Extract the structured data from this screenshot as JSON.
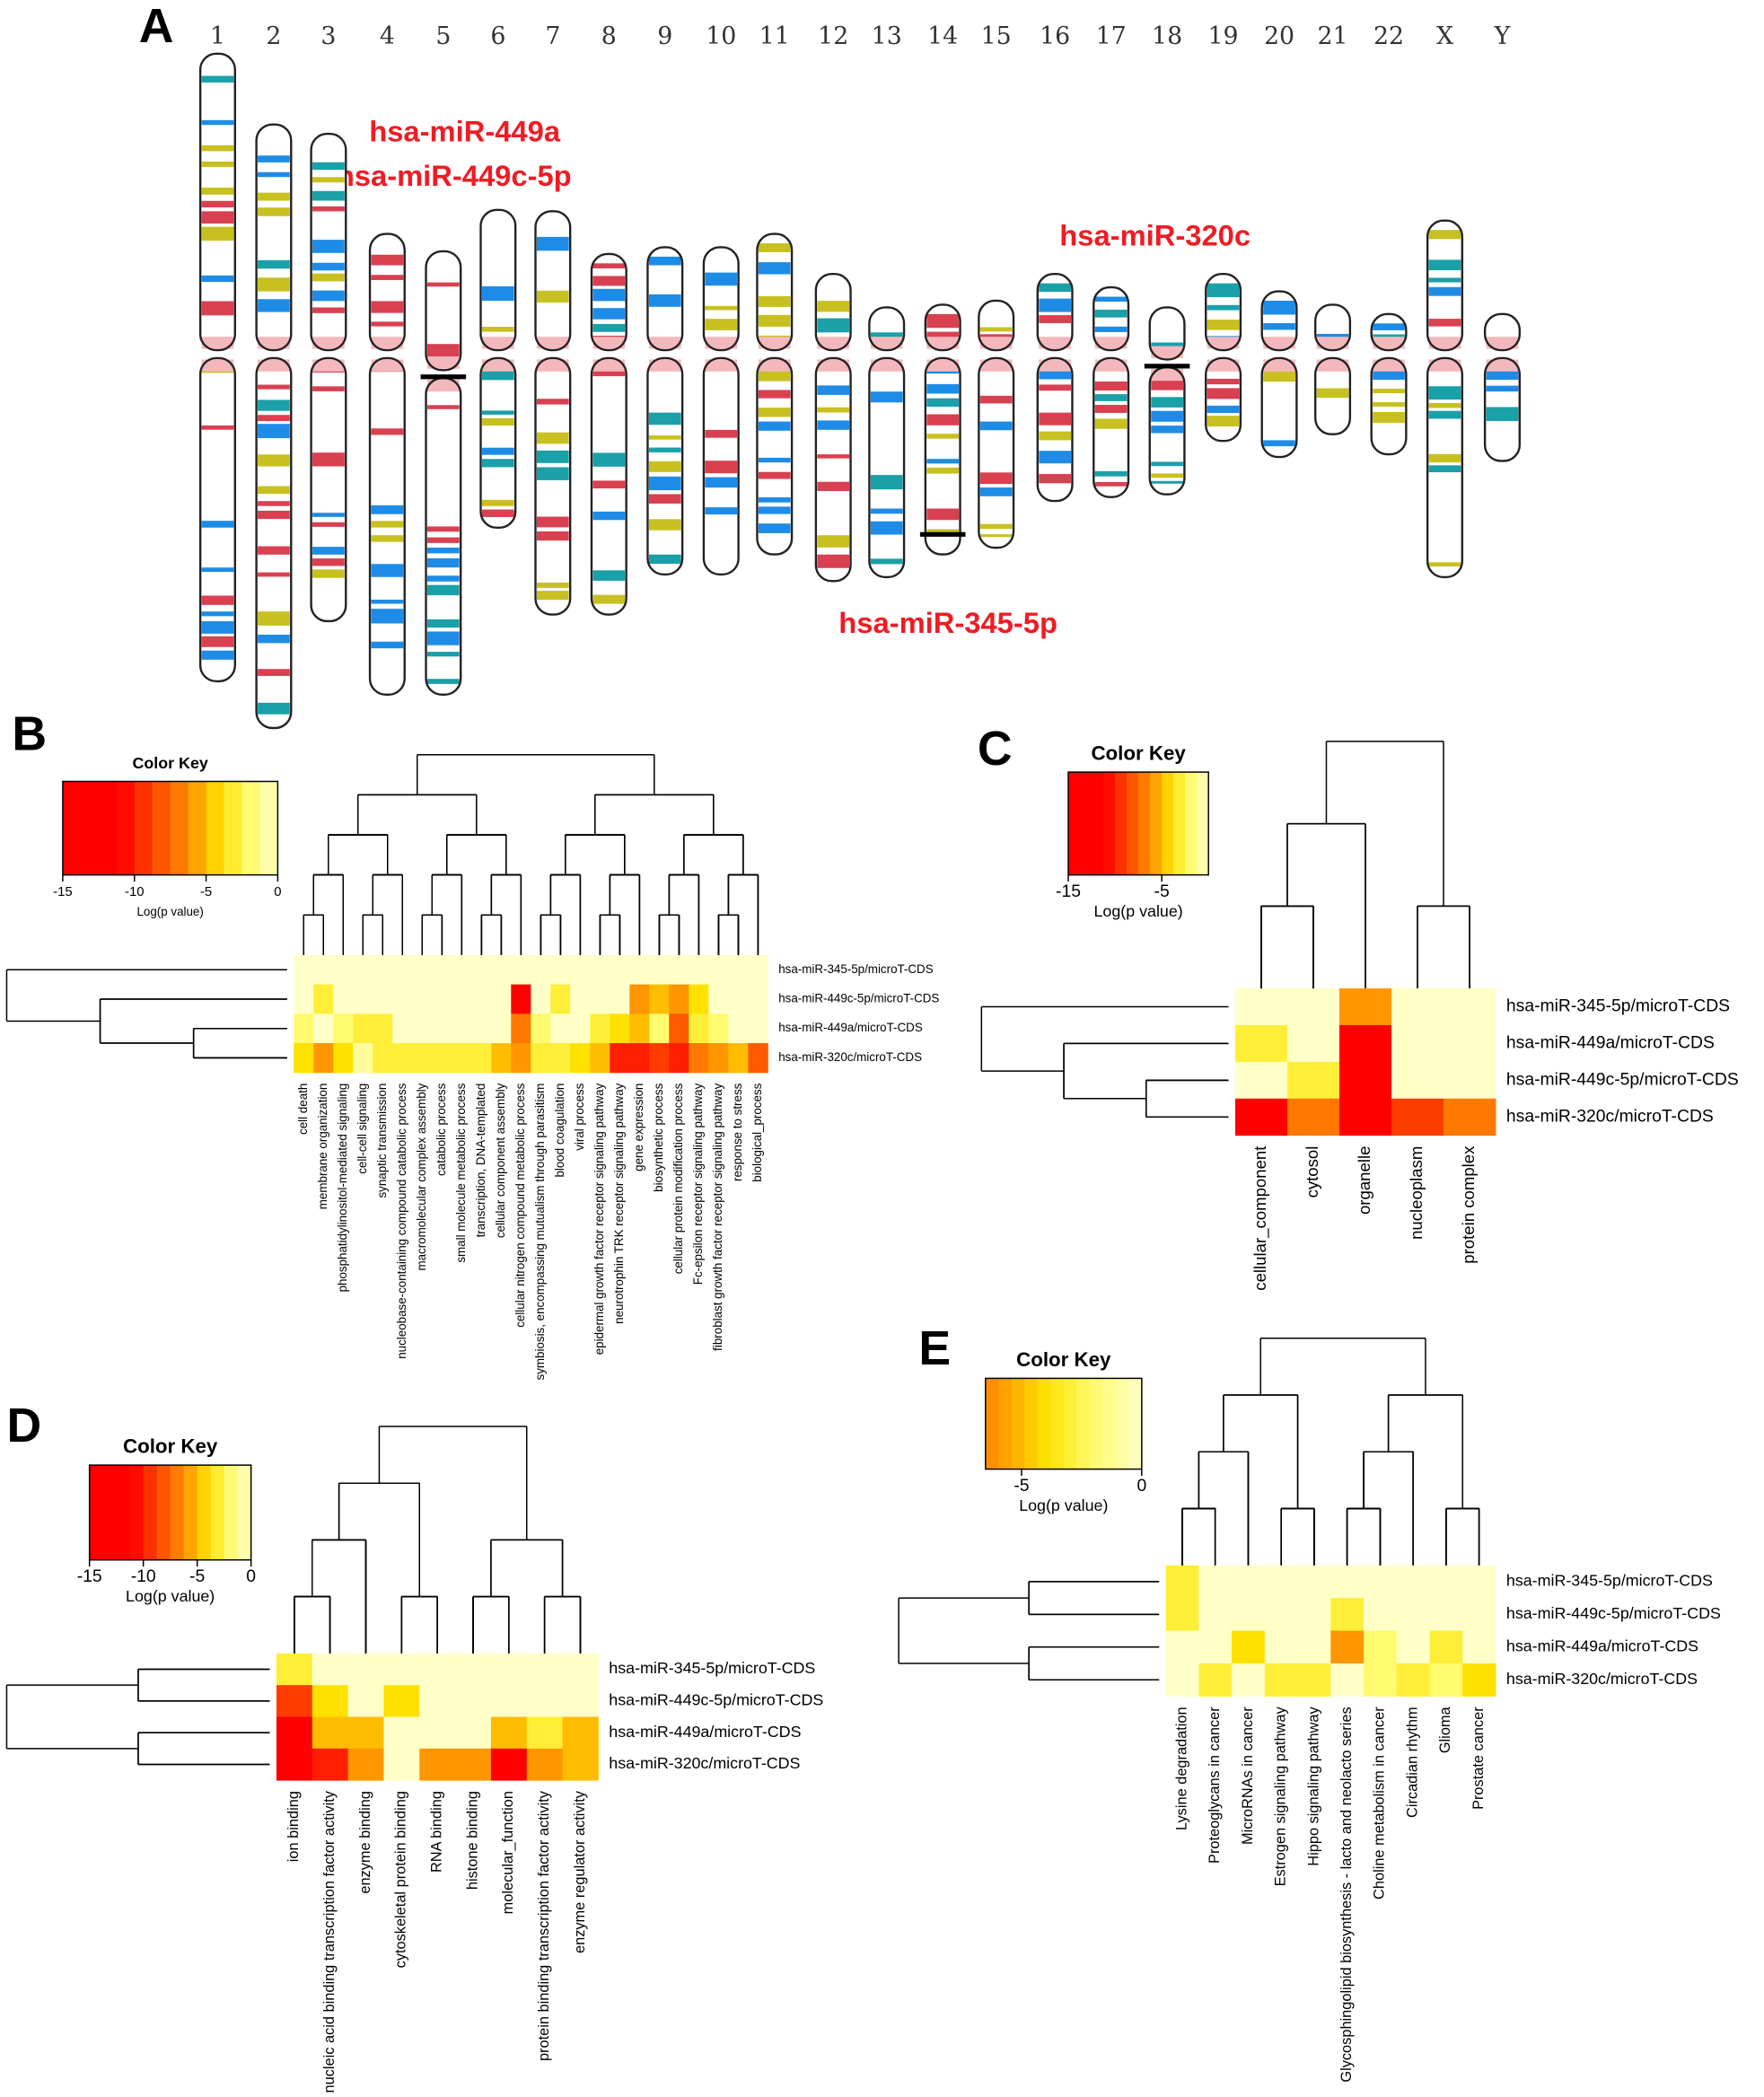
{
  "panels": {
    "A": {
      "label": "A",
      "chromosomes": [
        "1",
        "2",
        "3",
        "4",
        "5",
        "6",
        "7",
        "8",
        "9",
        "10",
        "11",
        "12",
        "13",
        "14",
        "15",
        "16",
        "17",
        "18",
        "19",
        "20",
        "21",
        "22",
        "X",
        "Y"
      ],
      "annotations": [
        "hsa-miR-449a",
        "hsa-miR-449c-5p",
        "hsa-miR-320c",
        "hsa-miR-345-5p"
      ]
    },
    "B": {
      "label": "B",
      "color_key": {
        "title": "Color Key",
        "xlabel": "Log(p value)",
        "lim": [
          -15,
          0
        ],
        "ticks": [
          -15,
          -10,
          -5,
          0
        ]
      },
      "rows": [
        "hsa-miR-345-5p/microT-CDS",
        "hsa-miR-449c-5p/microT-CDS",
        "hsa-miR-449a/microT-CDS",
        "hsa-miR-320c/microT-CDS"
      ],
      "columns": [
        "cell death",
        "membrane organization",
        "phosphatidylinositol-mediated signaling",
        "cell-cell signaling",
        "synaptic transmission",
        "nucleobase-containing compound catabolic process",
        "macromolecular complex assembly",
        "catabolic process",
        "small molecule metabolic process",
        "transcription, DNA-templated",
        "cellular component assembly",
        "cellular nitrogen compound metabolic process",
        "symbiosis, encompassing mutualism through parasitism",
        "blood coagulation",
        "viral process",
        "epidermal growth factor receptor signaling pathway",
        "neurotrophin TRK receptor signaling pathway",
        "gene expression",
        "biosynthetic process",
        "cellular protein modification process",
        "Fc-epsilon receptor signaling pathway",
        "fibroblast growth factor receptor signaling pathway",
        "response to stress",
        "biological_process"
      ],
      "values": [
        [
          0,
          0,
          0,
          0,
          0,
          0,
          0,
          0,
          0,
          0,
          0,
          0,
          0,
          0,
          0,
          0,
          0,
          0,
          0,
          0,
          0,
          0,
          0,
          0
        ],
        [
          0,
          -3,
          0,
          0,
          0,
          0,
          0,
          0,
          0,
          0,
          0,
          -12,
          0,
          -3,
          0,
          0,
          0,
          -6,
          -5,
          -6,
          -4,
          0,
          0,
          0
        ],
        [
          -2,
          0,
          -2,
          -3,
          -3,
          0,
          0,
          0,
          0,
          0,
          0,
          -7,
          -2,
          0,
          0,
          -3,
          -4,
          -5,
          -2,
          -8,
          -3,
          -2,
          0,
          0
        ],
        [
          -4,
          -6,
          -4,
          -1,
          -3,
          -3,
          -3,
          -3,
          -3,
          -3,
          -5,
          -6,
          -3,
          -3,
          -4,
          -5,
          -10,
          -10,
          -9,
          -10,
          -7,
          -6,
          -5,
          -8
        ]
      ]
    },
    "C": {
      "label": "C",
      "color_key": {
        "title": "Color Key",
        "xlabel": "Log(p value)",
        "lim": [
          -15,
          0
        ],
        "ticks": [
          -15,
          -5
        ]
      },
      "rows": [
        "hsa-miR-345-5p/microT-CDS",
        "hsa-miR-449a/microT-CDS",
        "hsa-miR-449c-5p/microT-CDS",
        "hsa-miR-320c/microT-CDS"
      ],
      "columns": [
        "cellular_component",
        "cytosol",
        "organelle",
        "nucleoplasm",
        "protein complex"
      ],
      "values": [
        [
          0,
          0,
          -6,
          0,
          0
        ],
        [
          -3,
          0,
          -15,
          0,
          0
        ],
        [
          0,
          -3,
          -15,
          0,
          0
        ],
        [
          -15,
          -7,
          -15,
          -9,
          -7
        ]
      ]
    },
    "D": {
      "label": "D",
      "color_key": {
        "title": "Color Key",
        "xlabel": "Log(p value)",
        "lim": [
          -15,
          0
        ],
        "ticks": [
          -15,
          -10,
          -5,
          0
        ]
      },
      "rows": [
        "hsa-miR-345-5p/microT-CDS",
        "hsa-miR-449c-5p/microT-CDS",
        "hsa-miR-449a/microT-CDS",
        "hsa-miR-320c/microT-CDS"
      ],
      "columns": [
        "ion binding",
        "nucleic acid binding transcription factor activity",
        "enzyme binding",
        "cytoskeletal protein binding",
        "RNA binding",
        "histone binding",
        "molecular_function",
        "protein binding transcription factor activity",
        "enzyme regulator activity"
      ],
      "values": [
        [
          -3,
          0,
          0,
          0,
          0,
          0,
          0,
          0,
          0
        ],
        [
          -9,
          -4,
          0,
          -4,
          0,
          0,
          0,
          0,
          0
        ],
        [
          -12,
          -5,
          -5,
          0,
          0,
          0,
          -5,
          -3,
          -5
        ],
        [
          -12,
          -10,
          -6,
          0,
          -6,
          -6,
          -11,
          -6,
          -5
        ]
      ]
    },
    "E": {
      "label": "E",
      "color_key": {
        "title": "Color Key",
        "xlabel": "Log(p value)",
        "lim": [
          -6.5,
          0
        ],
        "ticks": [
          -5,
          0
        ]
      },
      "rows": [
        "hsa-miR-345-5p/microT-CDS",
        "hsa-miR-449c-5p/microT-CDS",
        "hsa-miR-449a/microT-CDS",
        "hsa-miR-320c/microT-CDS"
      ],
      "columns": [
        "Lysine degradation",
        "Proteoglycans in cancer",
        "MicroRNAs in cancer",
        "Estrogen signaling pathway",
        "Hippo signaling pathway",
        "Glycosphingolipid biosynthesis - lacto and neolacto series",
        "Choline metabolism in cancer",
        "Circadian rhythm",
        "Glioma",
        "Prostate cancer"
      ],
      "values": [
        [
          -3,
          0,
          0,
          0,
          0,
          0,
          0,
          0,
          0,
          0
        ],
        [
          -3,
          0,
          0,
          0,
          0,
          -3,
          0,
          0,
          0,
          0
        ],
        [
          0,
          0,
          -4,
          0,
          0,
          -6,
          -2,
          0,
          -3,
          0
        ],
        [
          0,
          -3,
          0,
          -3,
          -3,
          0,
          -2,
          -3,
          -2,
          -4
        ]
      ]
    }
  }
}
